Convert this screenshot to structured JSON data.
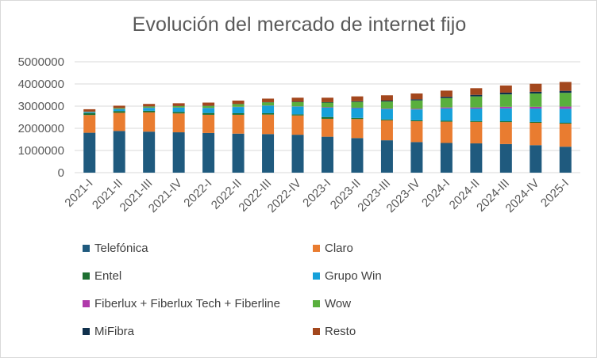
{
  "chart_data": {
    "type": "bar",
    "stacked": true,
    "title": "Evolución del mercado de internet fijo",
    "xlabel": "",
    "ylabel": "",
    "ylim": [
      0,
      5000000
    ],
    "yticks": [
      "0",
      "1000000",
      "2000000",
      "3000000",
      "4000000",
      "5000000"
    ],
    "grid": true,
    "legend_position": "bottom",
    "categories": [
      "2021-I",
      "2021-II",
      "2021-III",
      "2021-IV",
      "2022-I",
      "2022-II",
      "2022-III",
      "2022-IV",
      "2023-I",
      "2023-II",
      "2023-III",
      "2023-IV",
      "2024-I",
      "2024-II",
      "2024-III",
      "2024-IV",
      "2025-I"
    ],
    "series": [
      {
        "name": "Telefónica",
        "color": "#1F5A7E",
        "values": [
          1800000,
          1880000,
          1850000,
          1820000,
          1790000,
          1760000,
          1740000,
          1710000,
          1620000,
          1560000,
          1460000,
          1380000,
          1340000,
          1320000,
          1290000,
          1240000,
          1170000
        ]
      },
      {
        "name": "Claro",
        "color": "#E97C30",
        "values": [
          800000,
          820000,
          870000,
          850000,
          820000,
          850000,
          880000,
          870000,
          810000,
          860000,
          900000,
          940000,
          960000,
          970000,
          990000,
          1010000,
          1040000
        ]
      },
      {
        "name": "Entel",
        "color": "#1E7032",
        "values": [
          80000,
          80000,
          70000,
          70000,
          80000,
          70000,
          60000,
          50000,
          80000,
          50000,
          40000,
          40000,
          40000,
          40000,
          40000,
          40000,
          40000
        ]
      },
      {
        "name": "Grupo Win",
        "color": "#16A1DA",
        "values": [
          40000,
          80000,
          130000,
          190000,
          220000,
          280000,
          340000,
          350000,
          420000,
          440000,
          470000,
          490000,
          560000,
          560000,
          580000,
          600000,
          630000
        ]
      },
      {
        "name": "Fiberlux + Fiberlux Tech + Fiberline",
        "color": "#B03AAB",
        "values": [
          10000,
          10000,
          10000,
          10000,
          10000,
          10000,
          10000,
          10000,
          20000,
          20000,
          20000,
          30000,
          40000,
          50000,
          70000,
          80000,
          100000
        ]
      },
      {
        "name": "Wow",
        "color": "#59AF3D",
        "values": [
          20000,
          40000,
          50000,
          60000,
          90000,
          120000,
          140000,
          190000,
          210000,
          260000,
          320000,
          380000,
          420000,
          500000,
          560000,
          600000,
          620000
        ]
      },
      {
        "name": "MiFibra",
        "color": "#10304C",
        "values": [
          10000,
          10000,
          10000,
          10000,
          10000,
          10000,
          10000,
          20000,
          20000,
          30000,
          40000,
          50000,
          60000,
          70000,
          80000,
          80000,
          90000
        ]
      },
      {
        "name": "Resto",
        "color": "#A3471D",
        "values": [
          100000,
          100000,
          110000,
          120000,
          140000,
          150000,
          160000,
          180000,
          200000,
          220000,
          240000,
          260000,
          280000,
          300000,
          320000,
          360000,
          400000
        ]
      }
    ]
  }
}
